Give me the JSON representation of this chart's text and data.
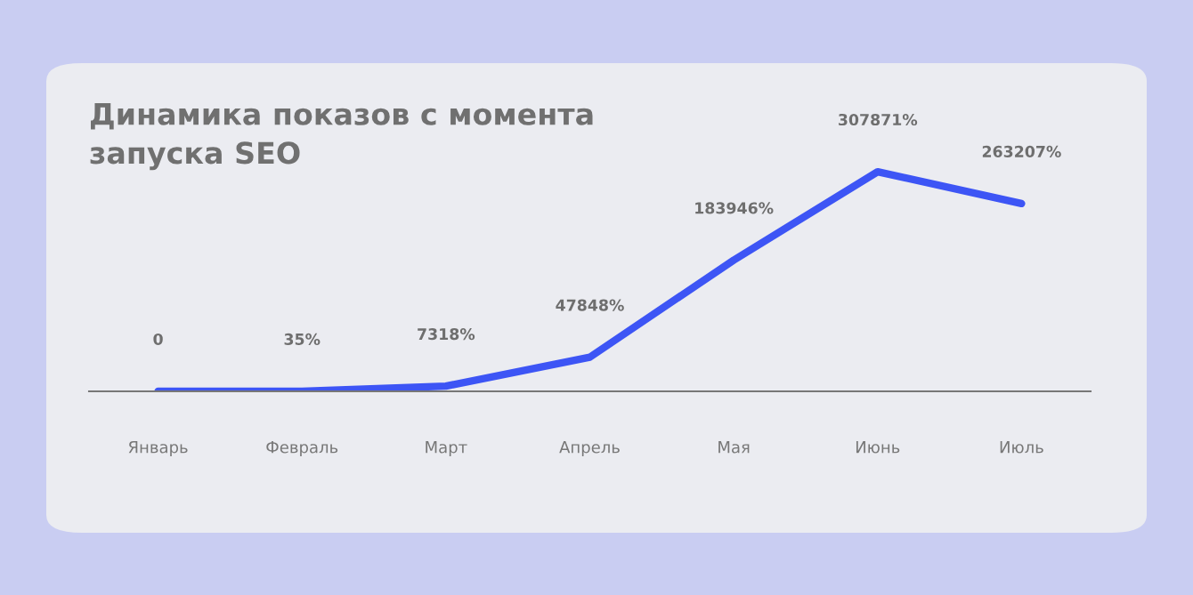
{
  "chart_data": {
    "type": "line",
    "title": "Динамика показов с момента\nзапуска SEO",
    "categories": [
      "Январь",
      "Февраль",
      "Март",
      "Апрель",
      "Мая",
      "Июнь",
      "Июль"
    ],
    "series": [
      {
        "color": "#3d55f5",
        "values": [
          0,
          35,
          7318,
          47848,
          183946,
          307871,
          263207
        ],
        "value_labels": [
          "0",
          "35%",
          "7318%",
          "47848%",
          "183946%",
          "307871%",
          "263207%"
        ]
      }
    ],
    "tick_labels": "x",
    "marker": "none",
    "line_style": "solid"
  }
}
